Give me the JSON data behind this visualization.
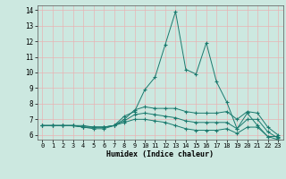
{
  "title": "",
  "xlabel": "Humidex (Indice chaleur)",
  "xlim": [
    -0.5,
    23.5
  ],
  "ylim": [
    5.7,
    14.3
  ],
  "yticks": [
    6,
    7,
    8,
    9,
    10,
    11,
    12,
    13,
    14
  ],
  "xticks": [
    0,
    1,
    2,
    3,
    4,
    5,
    6,
    7,
    8,
    9,
    10,
    11,
    12,
    13,
    14,
    15,
    16,
    17,
    18,
    19,
    20,
    21,
    22,
    23
  ],
  "bg_color": "#cce8e0",
  "line_color": "#1a7a6e",
  "grid_color_white": "#ffffff",
  "grid_color_pink": "#e8b4b4",
  "lines": [
    {
      "x": [
        0,
        1,
        2,
        3,
        4,
        5,
        6,
        7,
        8,
        9,
        10,
        11,
        12,
        13,
        14,
        15,
        16,
        17,
        18,
        19,
        20,
        21,
        22,
        23
      ],
      "y": [
        6.6,
        6.6,
        6.6,
        6.6,
        6.6,
        6.5,
        6.5,
        6.6,
        7.2,
        7.5,
        8.9,
        9.7,
        11.8,
        13.9,
        10.2,
        9.9,
        11.9,
        9.4,
        8.1,
        6.4,
        7.4,
        6.6,
        5.9,
        5.9
      ]
    },
    {
      "x": [
        0,
        1,
        2,
        3,
        4,
        5,
        6,
        7,
        8,
        9,
        10,
        11,
        12,
        13,
        14,
        15,
        16,
        17,
        18,
        19,
        20,
        21,
        22,
        23
      ],
      "y": [
        6.6,
        6.6,
        6.6,
        6.6,
        6.5,
        6.5,
        6.5,
        6.6,
        7.0,
        7.6,
        7.8,
        7.7,
        7.7,
        7.7,
        7.5,
        7.4,
        7.4,
        7.4,
        7.5,
        7.0,
        7.5,
        7.4,
        6.5,
        6.0
      ]
    },
    {
      "x": [
        0,
        1,
        2,
        3,
        4,
        5,
        6,
        7,
        8,
        9,
        10,
        11,
        12,
        13,
        14,
        15,
        16,
        17,
        18,
        19,
        20,
        21,
        22,
        23
      ],
      "y": [
        6.6,
        6.6,
        6.6,
        6.6,
        6.5,
        6.5,
        6.5,
        6.6,
        6.9,
        7.3,
        7.4,
        7.3,
        7.2,
        7.1,
        6.9,
        6.8,
        6.8,
        6.8,
        6.8,
        6.4,
        7.0,
        7.0,
        6.2,
        5.8
      ]
    },
    {
      "x": [
        0,
        1,
        2,
        3,
        4,
        5,
        6,
        7,
        8,
        9,
        10,
        11,
        12,
        13,
        14,
        15,
        16,
        17,
        18,
        19,
        20,
        21,
        22,
        23
      ],
      "y": [
        6.6,
        6.6,
        6.6,
        6.6,
        6.5,
        6.4,
        6.4,
        6.6,
        6.8,
        7.0,
        7.0,
        6.9,
        6.8,
        6.6,
        6.4,
        6.3,
        6.3,
        6.3,
        6.4,
        6.1,
        6.5,
        6.5,
        5.9,
        5.7
      ]
    }
  ]
}
